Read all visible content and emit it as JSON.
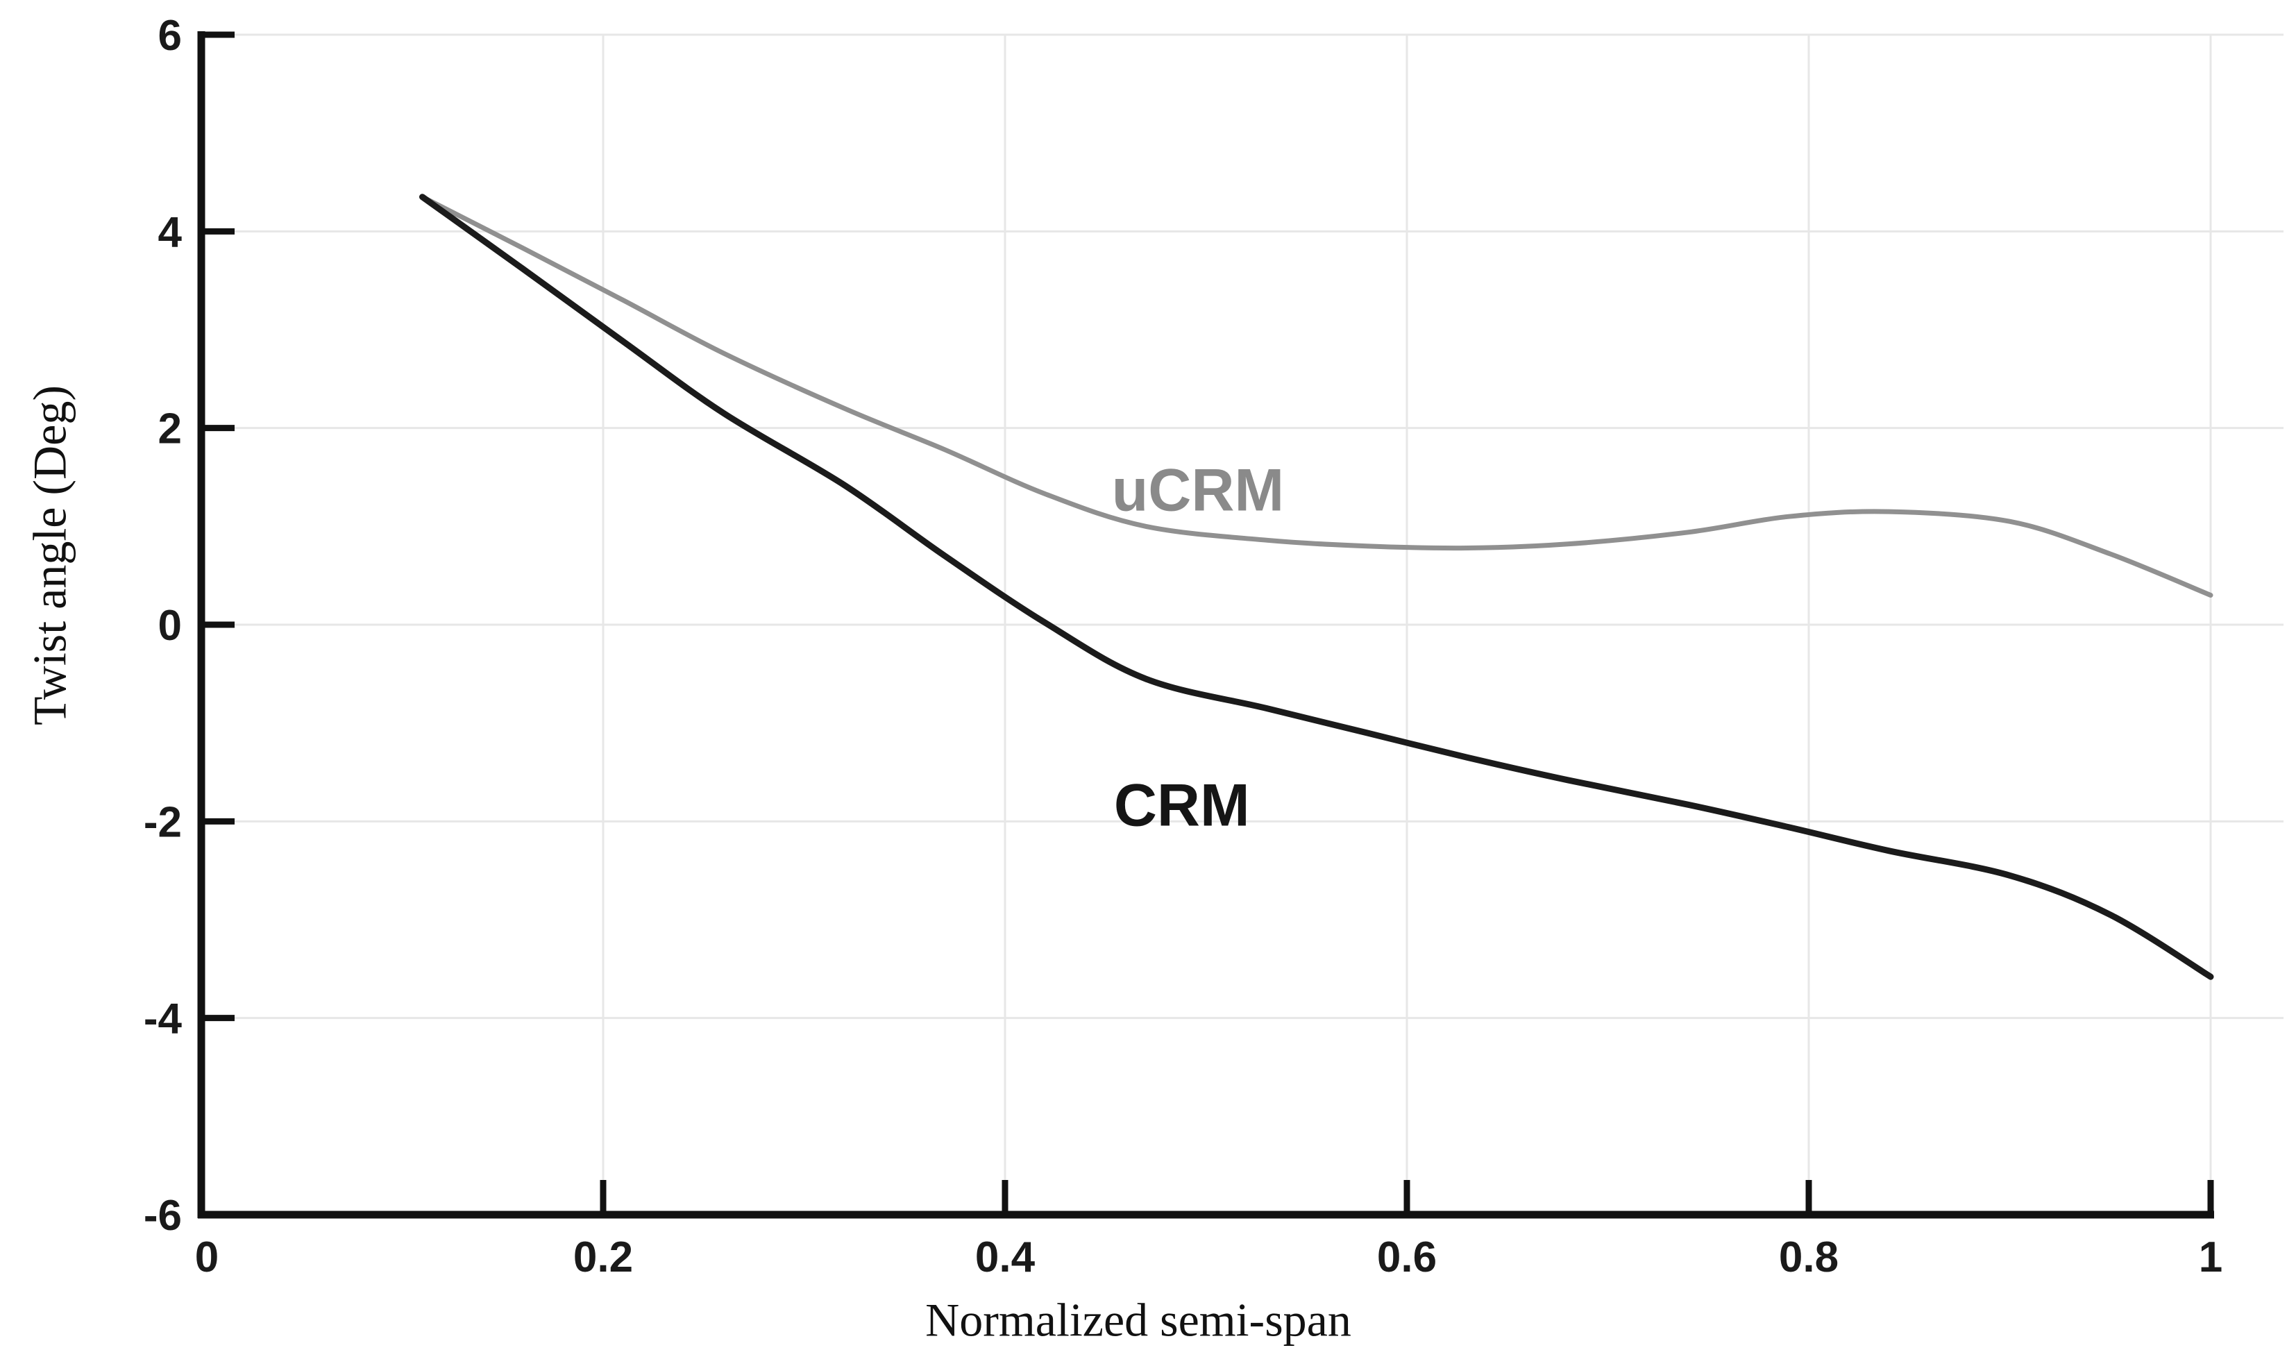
{
  "chart_data": {
    "type": "line",
    "title": "",
    "xlabel": "Normalized semi-span",
    "ylabel": "Twist angle (Deg)",
    "xlim": [
      0,
      1
    ],
    "ylim": [
      -6,
      6
    ],
    "grid": true,
    "legend_position": "inline-annotations",
    "x_ticks": [
      0,
      0.2,
      0.4,
      0.6,
      0.8,
      1
    ],
    "x_tick_labels": [
      "0",
      "0.2",
      "0.4",
      "0.6",
      "0.8",
      "1"
    ],
    "y_ticks": [
      6,
      4,
      2,
      0,
      -2,
      -4,
      -6
    ],
    "y_tick_labels": [
      "6",
      "4",
      "2",
      "0",
      "-2",
      "-4",
      "-6"
    ],
    "x": [
      0.11,
      0.16,
      0.21,
      0.26,
      0.32,
      0.37,
      0.42,
      0.47,
      0.53,
      0.58,
      0.63,
      0.68,
      0.74,
      0.79,
      0.84,
      0.9,
      0.95,
      1.0
    ],
    "series": [
      {
        "name": "uCRM",
        "color": "#909090",
        "line_width": 7,
        "values": [
          4.35,
          3.83,
          3.3,
          2.76,
          2.2,
          1.78,
          1.33,
          1.0,
          0.86,
          0.8,
          0.78,
          0.82,
          0.94,
          1.1,
          1.15,
          1.05,
          0.72,
          0.3
        ],
        "label": {
          "text": "uCRM",
          "x": 0.496,
          "y": 1.36,
          "color": "#8a8a8a"
        }
      },
      {
        "name": "CRM",
        "color": "#1b1b1b",
        "line_width": 9,
        "values": [
          4.35,
          3.62,
          2.88,
          2.15,
          1.42,
          0.7,
          0.02,
          -0.55,
          -0.85,
          -1.1,
          -1.35,
          -1.58,
          -1.83,
          -2.06,
          -2.3,
          -2.55,
          -2.95,
          -3.58
        ],
        "label": {
          "text": "CRM",
          "x": 0.488,
          "y": -1.84,
          "color": "#151515"
        }
      }
    ]
  },
  "colors": {
    "background": "#ffffff",
    "gridline": "#e7e7e7",
    "axis": "#111111",
    "tick_label": "#1a1a1a"
  }
}
